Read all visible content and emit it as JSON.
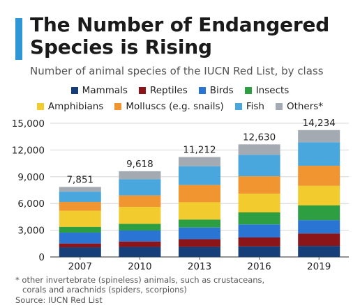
{
  "header": {
    "title_line1": "The Number of Endangered",
    "title_line2": "Species is Rising",
    "subtitle": "Number of animal species of the IUCN Red List, by class"
  },
  "footer": {
    "footnote_line1": "* other invertebrate (spineless) animals, such as crustaceans,",
    "footnote_line2": "corals and arachnids (spiders, scorpions)",
    "source": "Source: IUCN Red List"
  },
  "chart_data": {
    "type": "bar",
    "stacked": true,
    "categories": [
      "2007",
      "2010",
      "2013",
      "2016",
      "2019"
    ],
    "totals": [
      "7,851",
      "9,618",
      "11,212",
      "12,630",
      "14,234"
    ],
    "yticks": [
      "0",
      "3,000",
      "6,000",
      "9,000",
      "12,000",
      "15,000"
    ],
    "ylim": [
      0,
      15000
    ],
    "grid": true,
    "legend_position": "top",
    "series": [
      {
        "name": "Mammals",
        "color": "#163f7a",
        "values": [
          1090,
          1130,
          1140,
          1190,
          1240
        ]
      },
      {
        "name": "Reptiles",
        "color": "#8b1518",
        "values": [
          420,
          600,
          850,
          1000,
          1400
        ]
      },
      {
        "name": "Birds",
        "color": "#2a74d4",
        "values": [
          1220,
          1240,
          1310,
          1460,
          1490
        ]
      },
      {
        "name": "Insects",
        "color": "#2e9e43",
        "values": [
          650,
          750,
          900,
          1350,
          1650
        ]
      },
      {
        "name": "Amphibians",
        "color": "#f2cb2f",
        "values": [
          1810,
          1900,
          1940,
          2100,
          2200
        ]
      },
      {
        "name": "Molluscs (e.g. snails)",
        "color": "#f0952f",
        "values": [
          980,
          1280,
          1940,
          1960,
          2250
        ]
      },
      {
        "name": "Fish",
        "color": "#4aa7de",
        "values": [
          1160,
          1820,
          2100,
          2400,
          2640
        ]
      },
      {
        "name": "Others*",
        "color": "#a3aab2",
        "values": [
          521,
          898,
          1032,
          1170,
          1364
        ]
      }
    ]
  }
}
